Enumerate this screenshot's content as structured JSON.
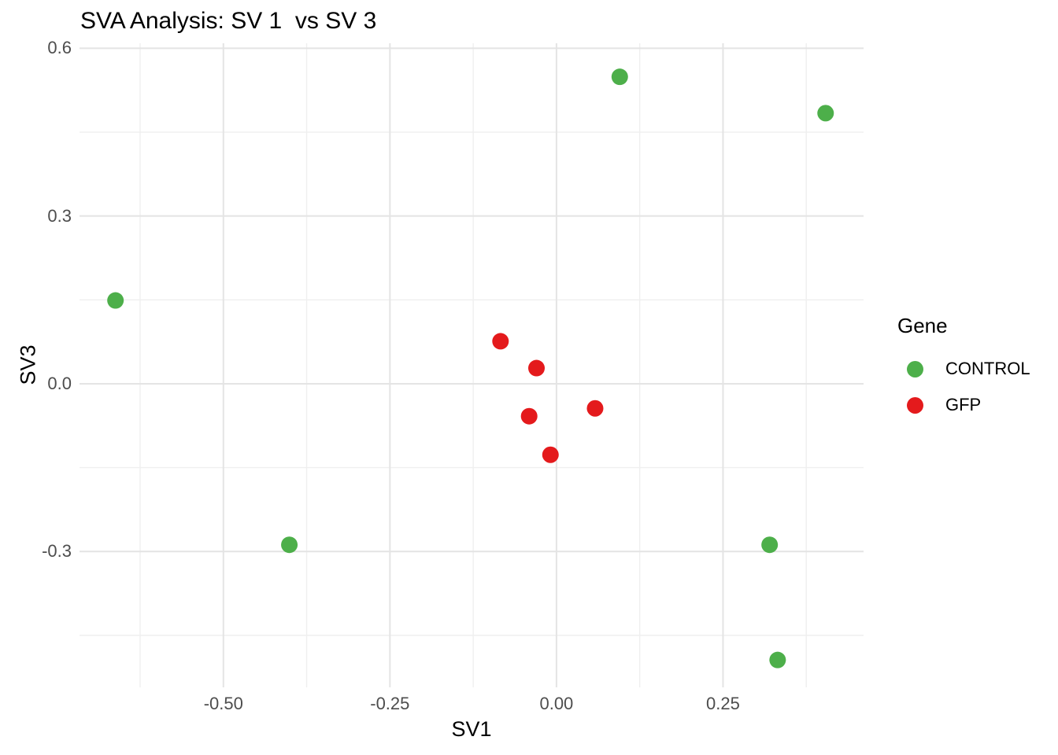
{
  "chart_data": {
    "type": "scatter",
    "title": "SVA Analysis: SV 1  vs SV 3",
    "xlabel": "SV1",
    "ylabel": "SV3",
    "xlim": [
      -0.716,
      0.461
    ],
    "ylim": [
      -0.543,
      0.609
    ],
    "grid": true,
    "background": "#ffffff",
    "major_grid_color": "#e4e4e4",
    "minor_grid_color": "#efefef",
    "tick_label_color": "#4d4d4d",
    "point_radius": 10.5,
    "x_ticks": [
      {
        "value": -0.5,
        "label": "-0.50"
      },
      {
        "value": -0.25,
        "label": "-0.25"
      },
      {
        "value": 0.0,
        "label": "0.00"
      },
      {
        "value": 0.25,
        "label": "0.25"
      }
    ],
    "x_minor_ticks": [
      -0.625,
      -0.375,
      -0.125,
      0.125,
      0.375
    ],
    "y_ticks": [
      {
        "value": 0.6,
        "label": "0.6"
      },
      {
        "value": 0.3,
        "label": "0.3"
      },
      {
        "value": 0.0,
        "label": "0.0"
      },
      {
        "value": -0.3,
        "label": "-0.3"
      }
    ],
    "y_minor_ticks": [
      0.45,
      0.15,
      -0.15,
      -0.45
    ],
    "legend": {
      "title": "Gene",
      "position": "right"
    },
    "series": [
      {
        "name": "CONTROL",
        "color": "#4daf4a",
        "points": [
          [
            0.095,
            0.549
          ],
          [
            0.404,
            0.484
          ],
          [
            -0.662,
            0.149
          ],
          [
            -0.401,
            -0.288
          ],
          [
            0.32,
            -0.288
          ],
          [
            0.332,
            -0.494
          ]
        ]
      },
      {
        "name": "GFP",
        "color": "#e41a1c",
        "points": [
          [
            -0.084,
            0.076
          ],
          [
            -0.03,
            0.028
          ],
          [
            -0.041,
            -0.058
          ],
          [
            0.058,
            -0.044
          ],
          [
            -0.009,
            -0.127
          ]
        ]
      }
    ]
  }
}
